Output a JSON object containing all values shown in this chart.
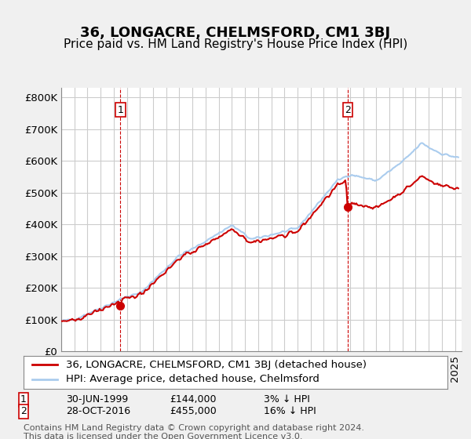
{
  "title": "36, LONGACRE, CHELMSFORD, CM1 3BJ",
  "subtitle": "Price paid vs. HM Land Registry's House Price Index (HPI)",
  "ylabel_ticks": [
    "£0",
    "£100K",
    "£200K",
    "£300K",
    "£400K",
    "£500K",
    "£600K",
    "£700K",
    "£800K"
  ],
  "ytick_values": [
    0,
    100000,
    200000,
    300000,
    400000,
    500000,
    600000,
    700000,
    800000
  ],
  "ylim": [
    0,
    830000
  ],
  "xlim_start": 1995.0,
  "xlim_end": 2025.5,
  "bg_color": "#f0f0f0",
  "plot_bg_color": "#ffffff",
  "grid_color": "#cccccc",
  "hpi_color": "#aaccee",
  "price_color": "#cc0000",
  "marker1_year": 1999.5,
  "marker1_value": 144000,
  "marker1_label": "1",
  "marker1_date": "30-JUN-1999",
  "marker1_price": "£144,000",
  "marker1_pct": "3% ↓ HPI",
  "marker2_year": 2016.83,
  "marker2_value": 455000,
  "marker2_label": "2",
  "marker2_date": "28-OCT-2016",
  "marker2_price": "£455,000",
  "marker2_pct": "16% ↓ HPI",
  "legend_line1": "36, LONGACRE, CHELMSFORD, CM1 3BJ (detached house)",
  "legend_line2": "HPI: Average price, detached house, Chelmsford",
  "footer": "Contains HM Land Registry data © Crown copyright and database right 2024.\nThis data is licensed under the Open Government Licence v3.0.",
  "title_fontsize": 13,
  "subtitle_fontsize": 11,
  "tick_fontsize": 9.5,
  "legend_fontsize": 9.5,
  "footer_fontsize": 8
}
